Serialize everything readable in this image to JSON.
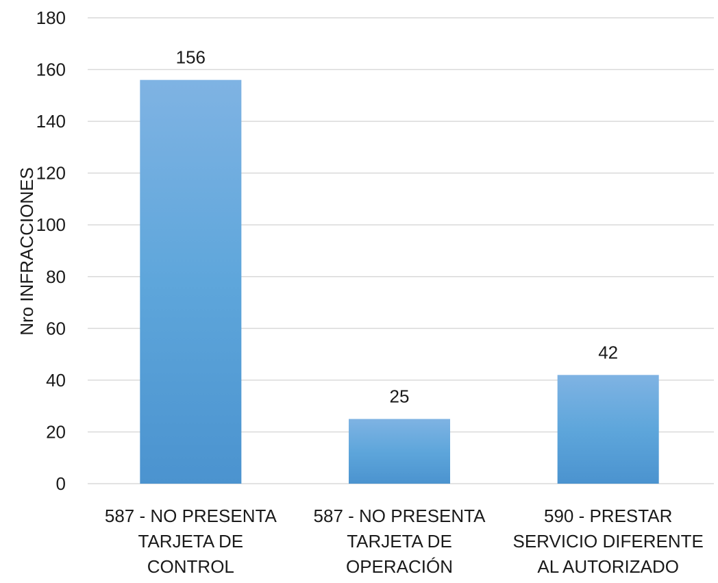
{
  "chart_data": {
    "type": "bar",
    "categories": [
      [
        "587 - NO PRESENTA",
        "TARJETA DE",
        "CONTROL"
      ],
      [
        "587 - NO PRESENTA",
        "TARJETA DE",
        "OPERACIÓN"
      ],
      [
        "590 - PRESTAR",
        "SERVICIO DIFERENTE",
        "AL AUTORIZADO"
      ]
    ],
    "values": [
      156,
      25,
      42
    ],
    "data_labels": [
      "156",
      "25",
      "42"
    ],
    "title": "",
    "xlabel": "",
    "ylabel": "Nro INFRACCIONES",
    "ylim": [
      0,
      180
    ],
    "yticks": [
      0,
      20,
      40,
      60,
      80,
      100,
      120,
      140,
      160,
      180
    ],
    "grid": true,
    "legend": "none",
    "colors": {
      "bar_top": "#7fb3e3",
      "bar_mid": "#5ea6db",
      "bar_bottom": "#4b93cf",
      "grid": "#d9d9d9"
    }
  }
}
